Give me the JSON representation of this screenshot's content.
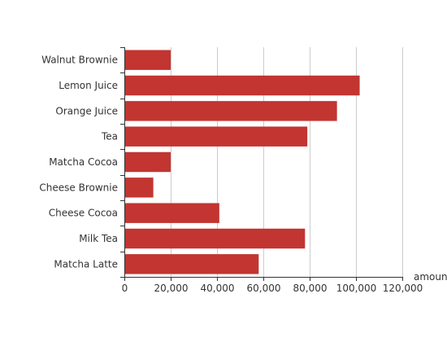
{
  "chart_data": {
    "type": "bar",
    "orientation": "horizontal",
    "categories": [
      "Walnut Brownie",
      "Lemon Juice",
      "Orange Juice",
      "Tea",
      "Matcha Cocoa",
      "Cheese Brownie",
      "Cheese Cocoa",
      "Milk Tea",
      "Matcha Latte"
    ],
    "values": [
      20000,
      101600,
      91800,
      79000,
      20000,
      12500,
      41000,
      78000,
      58000
    ],
    "xlabel": "amount",
    "ylabel": "",
    "xlim": [
      0,
      120000
    ],
    "x_ticks": [
      "0",
      "20,000",
      "40,000",
      "60,000",
      "80,000",
      "100,000",
      "120,000"
    ],
    "grid": "vertical",
    "colors": {
      "bar": "#c23531",
      "grid": "#cccccc",
      "axis": "#333333"
    }
  }
}
